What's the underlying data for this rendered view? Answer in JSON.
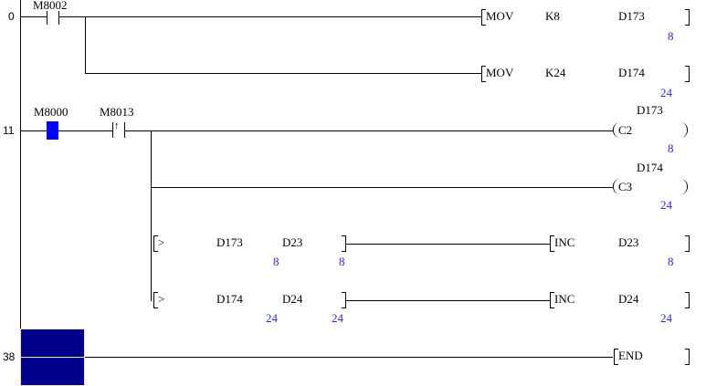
{
  "steps": [
    "0",
    "11",
    "38"
  ],
  "rung0": {
    "contact": "M8002",
    "inst1": {
      "op": "MOV",
      "src": "K8",
      "dst": "D173",
      "val": "8"
    },
    "inst2": {
      "op": "MOV",
      "src": "K24",
      "dst": "D174",
      "val": "24"
    }
  },
  "rung11": {
    "contact1": "M8000",
    "contact2": "M8013",
    "coil1": {
      "op": "C2",
      "dev": "D173",
      "val": "8"
    },
    "coil2": {
      "op": "C3",
      "dev": "D174",
      "val": "24"
    },
    "cmp1": {
      "op": ">",
      "a": "D173",
      "b": "D23",
      "a_val": "8",
      "b_val": "8",
      "inst": "INC",
      "dst": "D23",
      "dst_val": "8"
    },
    "cmp2": {
      "op": ">",
      "a": "D174",
      "b": "D24",
      "a_val": "24",
      "b_val": "24",
      "inst": "INC",
      "dst": "D24",
      "dst_val": "24"
    }
  },
  "rung38": {
    "inst": "END"
  },
  "colors": {
    "cursor": "#00008b",
    "active_contact": "#0000ff",
    "value": "#2a2ad0"
  }
}
